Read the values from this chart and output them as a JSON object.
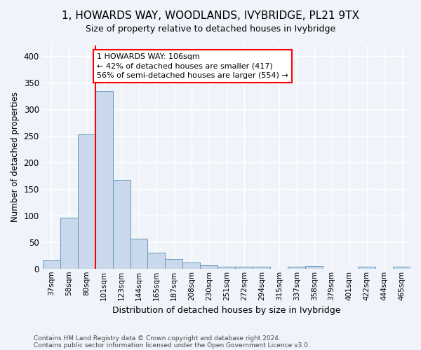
{
  "title": "1, HOWARDS WAY, WOODLANDS, IVYBRIDGE, PL21 9TX",
  "subtitle": "Size of property relative to detached houses in Ivybridge",
  "xlabel": "Distribution of detached houses by size in Ivybridge",
  "ylabel": "Number of detached properties",
  "categories": [
    "37sqm",
    "58sqm",
    "80sqm",
    "101sqm",
    "123sqm",
    "144sqm",
    "165sqm",
    "187sqm",
    "208sqm",
    "230sqm",
    "251sqm",
    "272sqm",
    "294sqm",
    "315sqm",
    "337sqm",
    "358sqm",
    "379sqm",
    "401sqm",
    "422sqm",
    "444sqm",
    "465sqm"
  ],
  "values": [
    15,
    96,
    253,
    335,
    167,
    57,
    30,
    18,
    12,
    6,
    4,
    4,
    3,
    0,
    4,
    5,
    0,
    0,
    3,
    0,
    3
  ],
  "bar_color": "#c9d9eb",
  "bar_edge_color": "#6699bb",
  "red_line_index": 3,
  "annotation_text": "1 HOWARDS WAY: 106sqm\n← 42% of detached houses are smaller (417)\n56% of semi-detached houses are larger (554) →",
  "ylim": [
    0,
    420
  ],
  "yticks": [
    0,
    50,
    100,
    150,
    200,
    250,
    300,
    350,
    400
  ],
  "footnote_line1": "Contains HM Land Registry data © Crown copyright and database right 2024.",
  "footnote_line2": "Contains public sector information licensed under the Open Government Licence v3.0.",
  "background_color": "#f0f4fa",
  "plot_background_color": "#f0f4fa",
  "grid_color": "#ffffff",
  "title_fontsize": 11,
  "subtitle_fontsize": 9
}
